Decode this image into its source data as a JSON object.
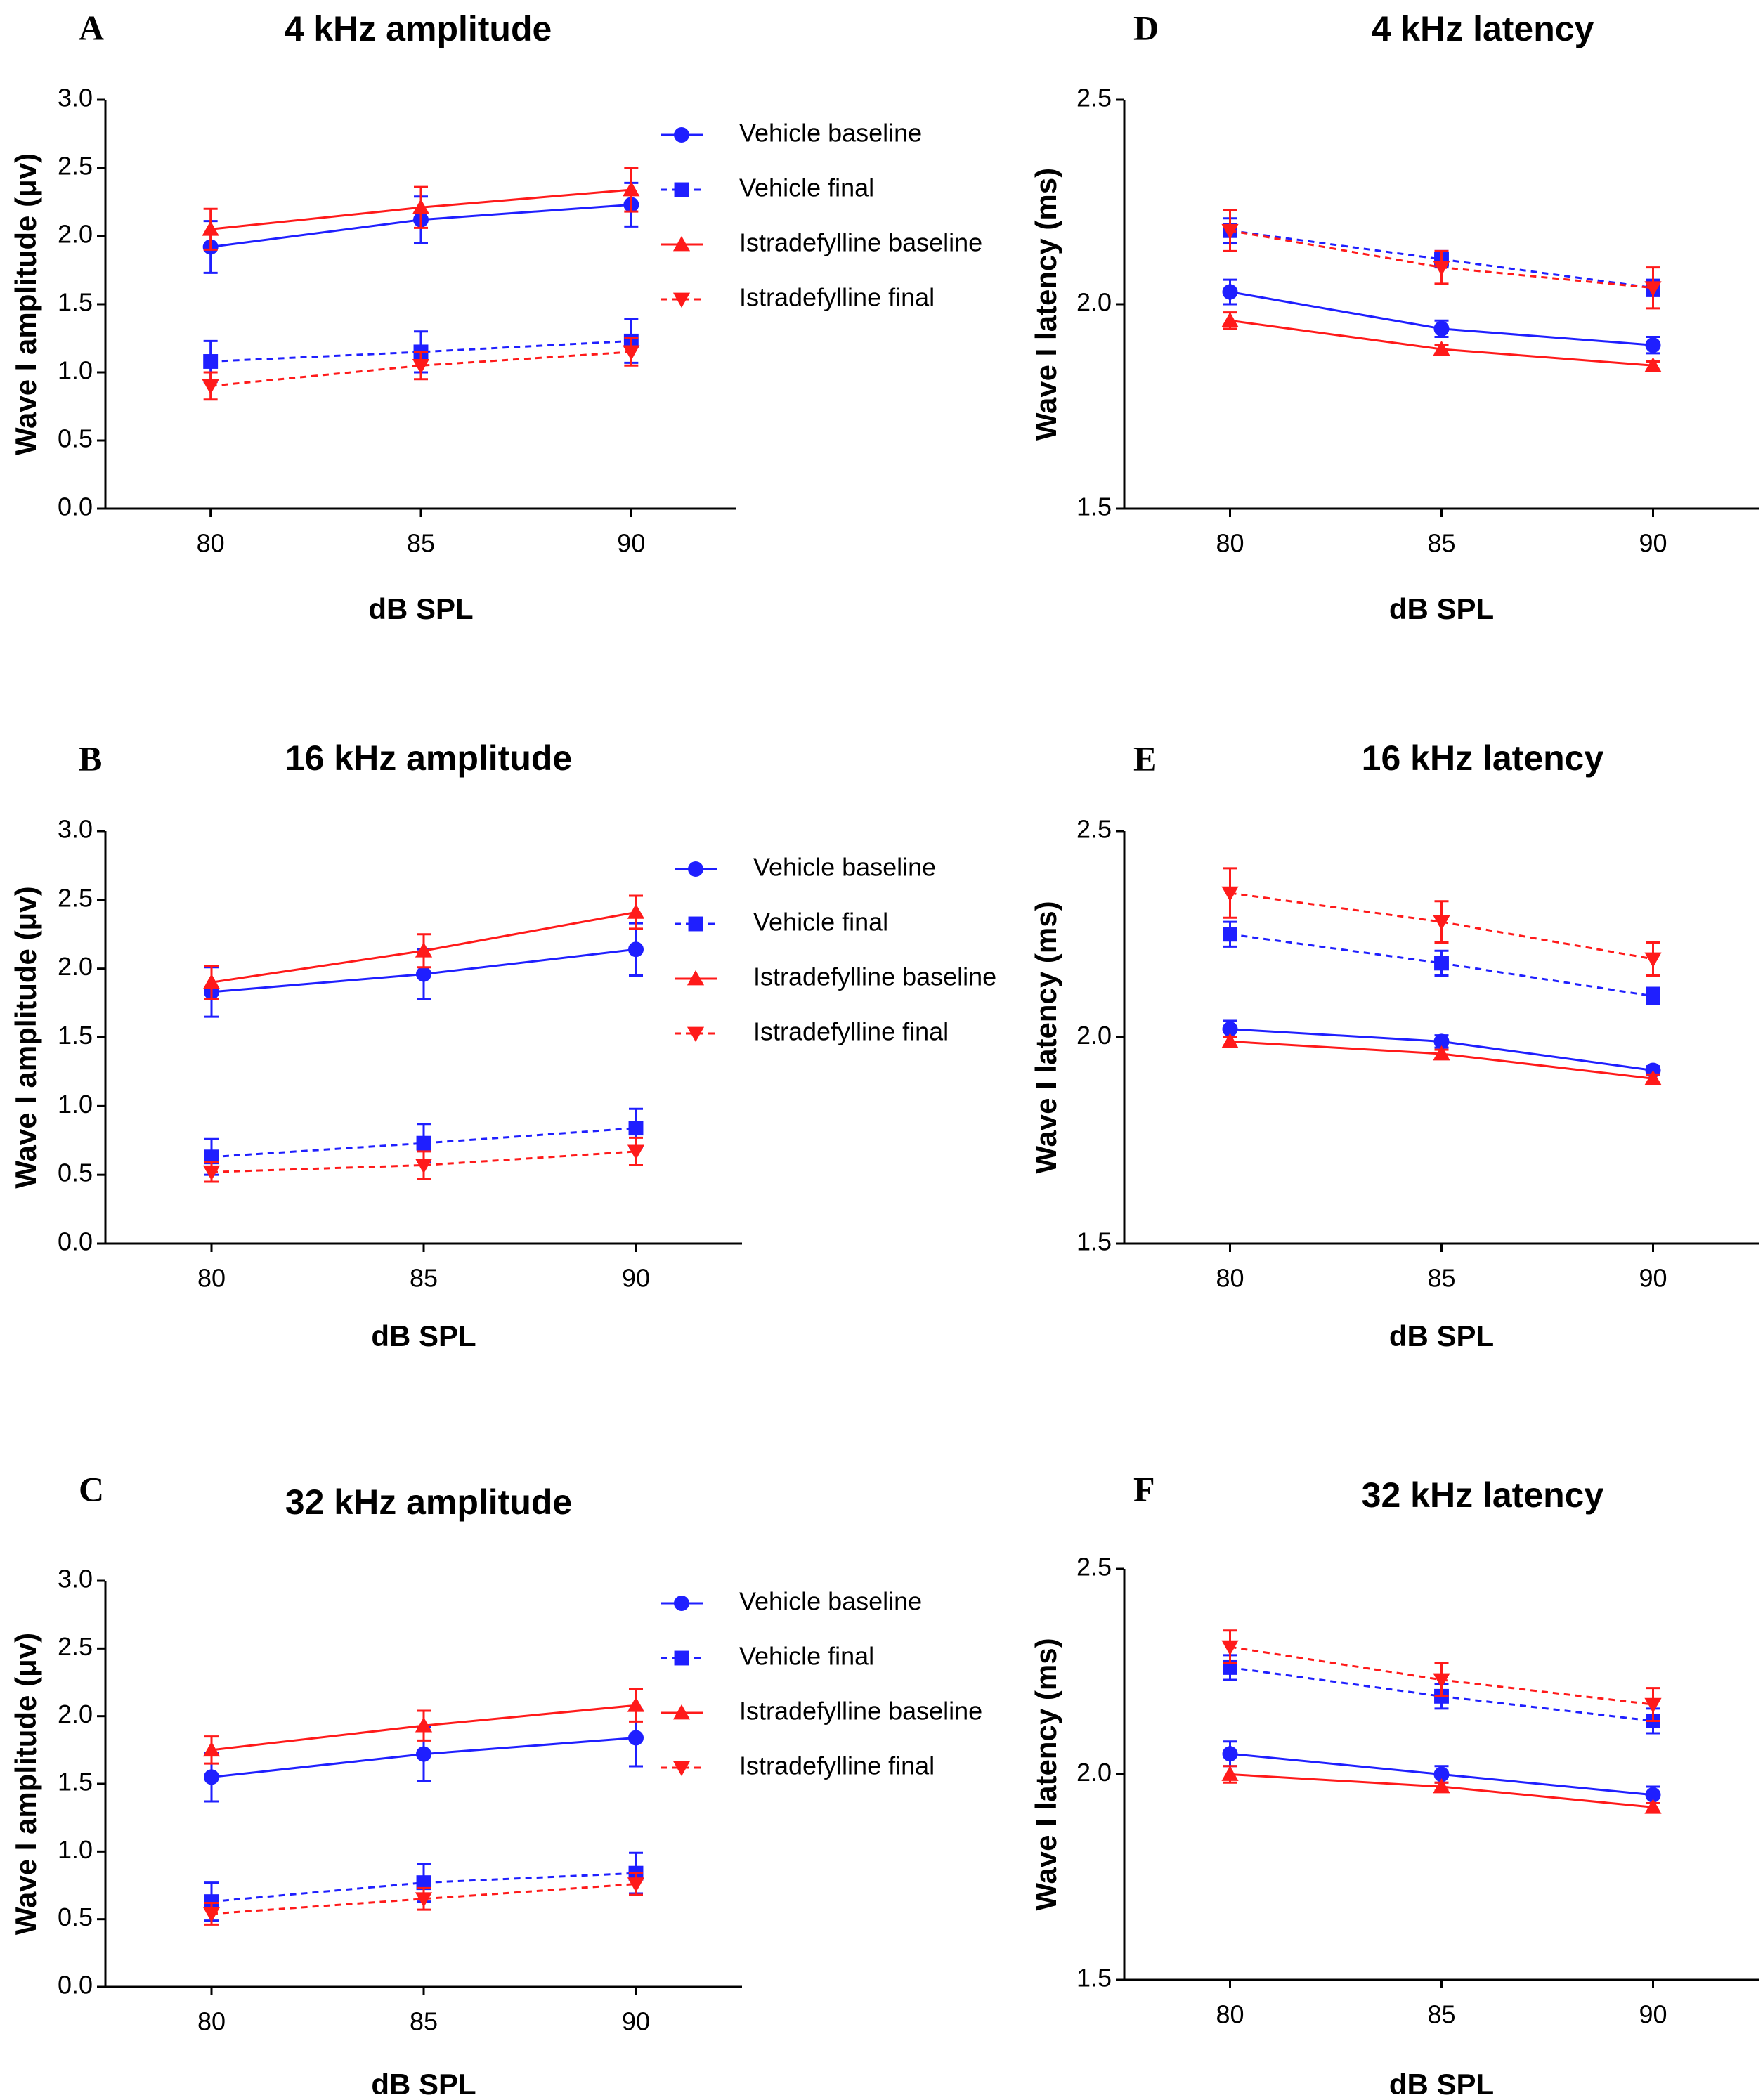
{
  "colors": {
    "vehicle": "#1f1fff",
    "istradefylline": "#ff1a1a",
    "axis": "#000000"
  },
  "legend": [
    {
      "label": "Vehicle baseline",
      "color": "#1f1fff",
      "marker": "circle",
      "dash": false
    },
    {
      "label": "Vehicle final",
      "color": "#1f1fff",
      "marker": "square",
      "dash": true
    },
    {
      "label": "Istradefylline baseline",
      "color": "#ff1a1a",
      "marker": "triangle-up",
      "dash": false
    },
    {
      "label": "Istradefylline final",
      "color": "#ff1a1a",
      "marker": "triangle-down",
      "dash": true
    }
  ],
  "chart_data": [
    {
      "panel": "A",
      "type": "line",
      "title": "4 kHz amplitude",
      "xlabel": "dB SPL",
      "ylabel": "Wave I amplitude (μv)",
      "x": [
        80,
        85,
        90
      ],
      "xlim": [
        77.5,
        92.5
      ],
      "ylim": [
        0,
        3.0
      ],
      "yticks": [
        "0.0",
        "0.5",
        "1.0",
        "1.5",
        "2.0",
        "2.5",
        "3.0"
      ],
      "legend": true,
      "series": [
        {
          "name": "Vehicle baseline",
          "values": [
            1.92,
            2.12,
            2.23
          ],
          "errors": [
            0.19,
            0.17,
            0.16
          ]
        },
        {
          "name": "Vehicle final",
          "values": [
            1.08,
            1.15,
            1.23
          ],
          "errors": [
            0.15,
            0.15,
            0.16
          ]
        },
        {
          "name": "Istradefylline baseline",
          "values": [
            2.05,
            2.21,
            2.34
          ],
          "errors": [
            0.15,
            0.15,
            0.16
          ]
        },
        {
          "name": "Istradefylline final",
          "values": [
            0.9,
            1.05,
            1.15
          ],
          "errors": [
            0.1,
            0.1,
            0.1
          ]
        }
      ]
    },
    {
      "panel": "B",
      "type": "line",
      "title": "16 kHz amplitude",
      "xlabel": "dB SPL",
      "ylabel": "Wave I amplitude (μv)",
      "x": [
        80,
        85,
        90
      ],
      "xlim": [
        77.5,
        92.5
      ],
      "ylim": [
        0,
        3.0
      ],
      "yticks": [
        "0.0",
        "0.5",
        "1.0",
        "1.5",
        "2.0",
        "2.5",
        "3.0"
      ],
      "legend": true,
      "series": [
        {
          "name": "Vehicle baseline",
          "values": [
            1.83,
            1.96,
            2.14
          ],
          "errors": [
            0.18,
            0.18,
            0.19
          ]
        },
        {
          "name": "Vehicle final",
          "values": [
            0.63,
            0.73,
            0.84
          ],
          "errors": [
            0.13,
            0.14,
            0.14
          ]
        },
        {
          "name": "Istradefylline baseline",
          "values": [
            1.9,
            2.13,
            2.41
          ],
          "errors": [
            0.12,
            0.12,
            0.12
          ]
        },
        {
          "name": "Istradefylline final",
          "values": [
            0.52,
            0.57,
            0.67
          ],
          "errors": [
            0.07,
            0.1,
            0.1
          ]
        }
      ]
    },
    {
      "panel": "C",
      "type": "line",
      "title": "32 kHz amplitude",
      "xlabel": "dB SPL",
      "ylabel": "Wave I amplitude (μv)",
      "x": [
        80,
        85,
        90
      ],
      "xlim": [
        77.5,
        92.5
      ],
      "ylim": [
        0,
        3.0
      ],
      "yticks": [
        "0.0",
        "0.5",
        "1.0",
        "1.5",
        "2.0",
        "2.5",
        "3.0"
      ],
      "legend": true,
      "series": [
        {
          "name": "Vehicle baseline",
          "values": [
            1.55,
            1.72,
            1.84
          ],
          "errors": [
            0.18,
            0.2,
            0.21
          ]
        },
        {
          "name": "Vehicle final",
          "values": [
            0.63,
            0.77,
            0.84
          ],
          "errors": [
            0.14,
            0.14,
            0.15
          ]
        },
        {
          "name": "Istradefylline baseline",
          "values": [
            1.75,
            1.93,
            2.08
          ],
          "errors": [
            0.1,
            0.11,
            0.12
          ]
        },
        {
          "name": "Istradefylline final",
          "values": [
            0.54,
            0.65,
            0.76
          ],
          "errors": [
            0.08,
            0.08,
            0.08
          ]
        }
      ]
    },
    {
      "panel": "D",
      "type": "line",
      "title": "4 kHz latency",
      "xlabel": "dB SPL",
      "ylabel": "Wave I latency (ms)",
      "x": [
        80,
        85,
        90
      ],
      "xlim": [
        77.5,
        92.5
      ],
      "ylim": [
        1.5,
        2.5
      ],
      "yticks": [
        "1.5",
        "2.0",
        "2.5"
      ],
      "legend": false,
      "series": [
        {
          "name": "Vehicle baseline",
          "values": [
            2.03,
            1.94,
            1.9
          ],
          "errors": [
            0.03,
            0.02,
            0.02
          ]
        },
        {
          "name": "Vehicle final",
          "values": [
            2.18,
            2.11,
            2.04
          ],
          "errors": [
            0.03,
            0.02,
            0.02
          ]
        },
        {
          "name": "Istradefylline baseline",
          "values": [
            1.96,
            1.89,
            1.85
          ],
          "errors": [
            0.02,
            0.01,
            0.01
          ]
        },
        {
          "name": "Istradefylline final",
          "values": [
            2.18,
            2.09,
            2.04
          ],
          "errors": [
            0.05,
            0.04,
            0.05
          ]
        }
      ]
    },
    {
      "panel": "E",
      "type": "line",
      "title": "16 kHz latency",
      "xlabel": "dB SPL",
      "ylabel": "Wave I latency (ms)",
      "x": [
        80,
        85,
        90
      ],
      "xlim": [
        77.5,
        92.5
      ],
      "ylim": [
        1.5,
        2.5
      ],
      "yticks": [
        "1.5",
        "2.0",
        "2.5"
      ],
      "legend": false,
      "series": [
        {
          "name": "Vehicle baseline",
          "values": [
            2.02,
            1.99,
            1.92
          ],
          "errors": [
            0.02,
            0.015,
            0.01
          ]
        },
        {
          "name": "Vehicle final",
          "values": [
            2.25,
            2.18,
            2.1
          ],
          "errors": [
            0.03,
            0.03,
            0.02
          ]
        },
        {
          "name": "Istradefylline baseline",
          "values": [
            1.99,
            1.96,
            1.9
          ],
          "errors": [
            0.01,
            0.01,
            0.01
          ]
        },
        {
          "name": "Istradefylline final",
          "values": [
            2.35,
            2.28,
            2.19
          ],
          "errors": [
            0.06,
            0.05,
            0.04
          ]
        }
      ]
    },
    {
      "panel": "F",
      "type": "line",
      "title": "32 kHz latency",
      "xlabel": "dB SPL",
      "ylabel": "Wave I latency (ms)",
      "x": [
        80,
        85,
        90
      ],
      "xlim": [
        77.5,
        92.5
      ],
      "ylim": [
        1.5,
        2.5
      ],
      "yticks": [
        "1.5",
        "2.0",
        "2.5"
      ],
      "legend": false,
      "series": [
        {
          "name": "Vehicle baseline",
          "values": [
            2.05,
            2.0,
            1.95
          ],
          "errors": [
            0.03,
            0.02,
            0.02
          ]
        },
        {
          "name": "Vehicle final",
          "values": [
            2.26,
            2.19,
            2.13
          ],
          "errors": [
            0.03,
            0.03,
            0.03
          ]
        },
        {
          "name": "Istradefylline baseline",
          "values": [
            2.0,
            1.97,
            1.92
          ],
          "errors": [
            0.02,
            0.01,
            0.01
          ]
        },
        {
          "name": "Istradefylline final",
          "values": [
            2.31,
            2.23,
            2.17
          ],
          "errors": [
            0.04,
            0.04,
            0.04
          ]
        }
      ]
    }
  ]
}
